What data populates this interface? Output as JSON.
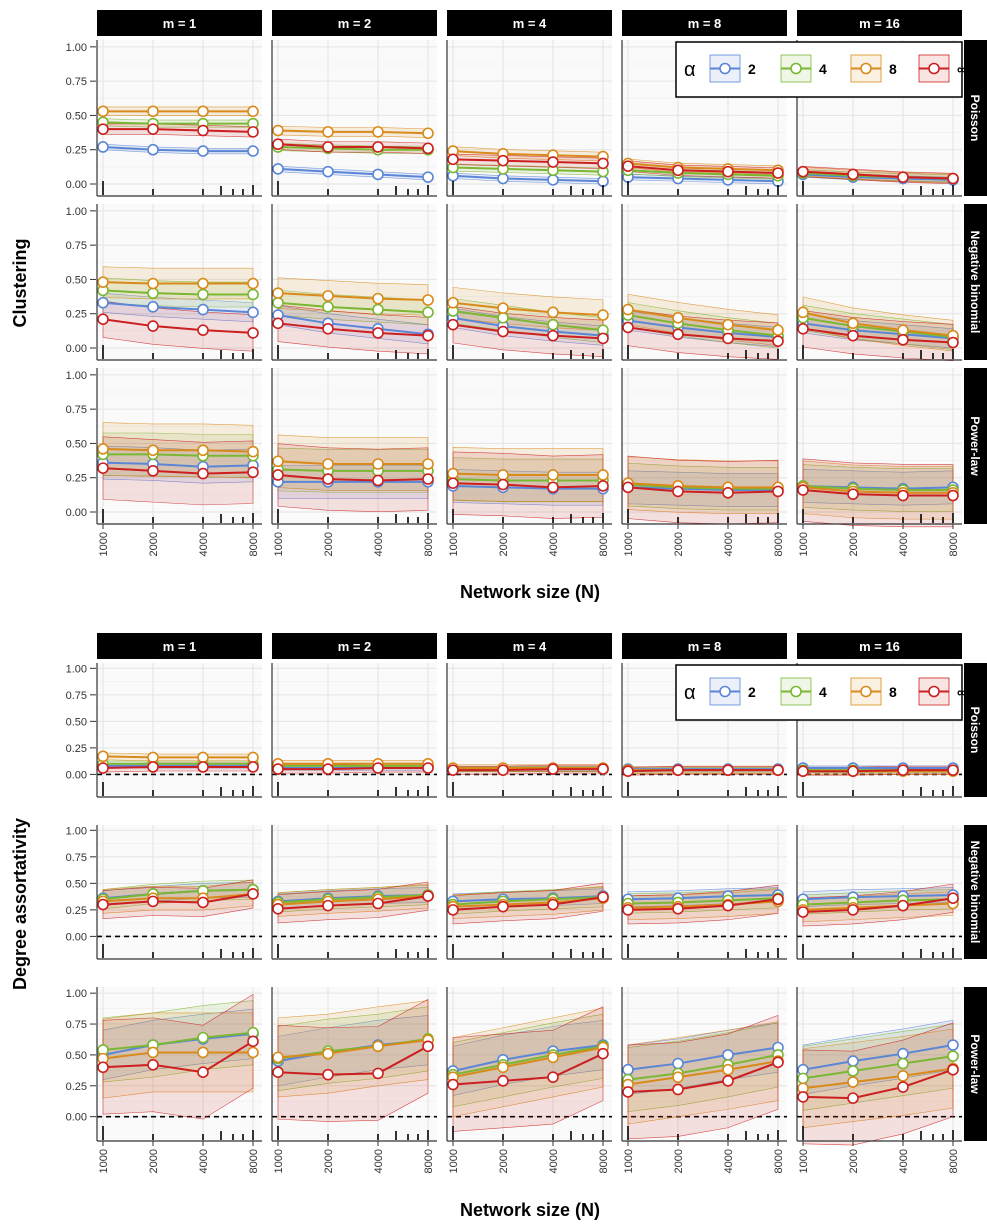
{
  "legend": {
    "symbol": "α",
    "labels": [
      "2",
      "4",
      "8",
      "∞"
    ]
  },
  "colors": {
    "2": "#5b86d6",
    "4": "#7ab733",
    "8": "#d88a1a",
    "inf": "#cc1f1f"
  },
  "chart_data": [
    {
      "type": "line",
      "ylabel": "Clustering",
      "xlabel": "Network size (N)",
      "x": [
        1000,
        2000,
        4000,
        8000
      ],
      "x_tick_labels": [
        "1000",
        "2000",
        "4000",
        "8000"
      ],
      "y_tick_labels": [
        "0.00",
        "0.25",
        "0.50",
        "0.75",
        "1.00"
      ],
      "ylim": [
        0,
        1.05
      ],
      "col_facets": [
        "m = 1",
        "m = 2",
        "m = 4",
        "m = 8",
        "m = 16"
      ],
      "row_facets": [
        "Poisson",
        "Negative binomial",
        "Power-law"
      ],
      "reference_line": null,
      "panels": [
        [
          {
            "s2": [
              0.27,
              0.25,
              0.24,
              0.24
            ],
            "s4": [
              0.45,
              0.44,
              0.44,
              0.44
            ],
            "s8": [
              0.53,
              0.53,
              0.53,
              0.53
            ],
            "sinf": [
              0.4,
              0.4,
              0.39,
              0.38
            ]
          },
          {
            "s2": [
              0.11,
              0.09,
              0.07,
              0.05
            ],
            "s4": [
              0.27,
              0.26,
              0.25,
              0.25
            ],
            "s8": [
              0.39,
              0.38,
              0.38,
              0.37
            ],
            "sinf": [
              0.29,
              0.27,
              0.27,
              0.26
            ]
          },
          {
            "s2": [
              0.06,
              0.04,
              0.03,
              0.02
            ],
            "s4": [
              0.12,
              0.11,
              0.1,
              0.09
            ],
            "s8": [
              0.24,
              0.22,
              0.21,
              0.2
            ],
            "sinf": [
              0.18,
              0.17,
              0.16,
              0.15
            ]
          },
          {
            "s2": [
              0.05,
              0.04,
              0.03,
              0.02
            ],
            "s4": [
              0.1,
              0.08,
              0.07,
              0.06
            ],
            "s8": [
              0.15,
              0.12,
              0.11,
              0.1
            ],
            "sinf": [
              0.13,
              0.1,
              0.09,
              0.08
            ]
          },
          {
            "s2": [
              0.07,
              0.05,
              0.04,
              0.03
            ],
            "s4": [
              0.08,
              0.06,
              0.05,
              0.04
            ],
            "s8": [
              0.09,
              0.07,
              0.05,
              0.04
            ],
            "sinf": [
              0.09,
              0.07,
              0.05,
              0.04
            ]
          }
        ],
        [
          {
            "s2": [
              0.33,
              0.3,
              0.28,
              0.26
            ],
            "s4": [
              0.42,
              0.4,
              0.39,
              0.39
            ],
            "s8": [
              0.48,
              0.47,
              0.47,
              0.47
            ],
            "sinf": [
              0.21,
              0.16,
              0.13,
              0.11
            ]
          },
          {
            "s2": [
              0.24,
              0.18,
              0.14,
              0.1
            ],
            "s4": [
              0.33,
              0.3,
              0.28,
              0.26
            ],
            "s8": [
              0.4,
              0.38,
              0.36,
              0.35
            ],
            "sinf": [
              0.18,
              0.14,
              0.11,
              0.09
            ]
          },
          {
            "s2": [
              0.22,
              0.16,
              0.12,
              0.09
            ],
            "s4": [
              0.27,
              0.22,
              0.17,
              0.13
            ],
            "s8": [
              0.33,
              0.29,
              0.26,
              0.24
            ],
            "sinf": [
              0.17,
              0.12,
              0.09,
              0.07
            ]
          },
          {
            "s2": [
              0.2,
              0.15,
              0.11,
              0.08
            ],
            "s4": [
              0.24,
              0.18,
              0.13,
              0.09
            ],
            "s8": [
              0.28,
              0.22,
              0.17,
              0.13
            ],
            "sinf": [
              0.15,
              0.1,
              0.07,
              0.05
            ]
          },
          {
            "s2": [
              0.18,
              0.13,
              0.1,
              0.07
            ],
            "s4": [
              0.22,
              0.16,
              0.12,
              0.08
            ],
            "s8": [
              0.26,
              0.18,
              0.13,
              0.09
            ],
            "sinf": [
              0.14,
              0.09,
              0.06,
              0.04
            ]
          }
        ],
        [
          {
            "s2": [
              0.36,
              0.35,
              0.33,
              0.34
            ],
            "s4": [
              0.42,
              0.42,
              0.41,
              0.41
            ],
            "s8": [
              0.46,
              0.45,
              0.45,
              0.44
            ],
            "sinf": [
              0.32,
              0.3,
              0.28,
              0.29
            ]
          },
          {
            "s2": [
              0.22,
              0.22,
              0.22,
              0.22
            ],
            "s4": [
              0.31,
              0.3,
              0.3,
              0.3
            ],
            "s8": [
              0.37,
              0.35,
              0.35,
              0.35
            ],
            "sinf": [
              0.27,
              0.24,
              0.23,
              0.24
            ]
          },
          {
            "s2": [
              0.19,
              0.18,
              0.17,
              0.17
            ],
            "s4": [
              0.24,
              0.23,
              0.23,
              0.23
            ],
            "s8": [
              0.28,
              0.27,
              0.27,
              0.27
            ],
            "sinf": [
              0.21,
              0.2,
              0.18,
              0.19
            ]
          },
          {
            "s2": [
              0.18,
              0.17,
              0.16,
              0.16
            ],
            "s4": [
              0.2,
              0.18,
              0.17,
              0.17
            ],
            "s8": [
              0.21,
              0.19,
              0.18,
              0.18
            ],
            "sinf": [
              0.18,
              0.15,
              0.14,
              0.15
            ]
          },
          {
            "s2": [
              0.19,
              0.18,
              0.17,
              0.18
            ],
            "s4": [
              0.19,
              0.17,
              0.16,
              0.16
            ],
            "s8": [
              0.18,
              0.15,
              0.14,
              0.14
            ],
            "sinf": [
              0.16,
              0.13,
              0.12,
              0.12
            ]
          }
        ]
      ]
    },
    {
      "type": "line",
      "ylabel": "Degree assortativity",
      "xlabel": "Network size (N)",
      "x": [
        1000,
        2000,
        4000,
        8000
      ],
      "x_tick_labels": [
        "1000",
        "2000",
        "4000",
        "8000"
      ],
      "y_tick_labels": [
        "0.00",
        "0.25",
        "0.50",
        "0.75",
        "1.00"
      ],
      "ylim": [
        -0.1,
        1.05
      ],
      "col_facets": [
        "m = 1",
        "m = 2",
        "m = 4",
        "m = 8",
        "m = 16"
      ],
      "row_facets": [
        "Poisson",
        "Negative binomial",
        "Power-law"
      ],
      "reference_line": 0,
      "panels": [
        [
          {
            "s2": [
              0.08,
              0.08,
              0.08,
              0.08
            ],
            "s4": [
              0.1,
              0.1,
              0.1,
              0.1
            ],
            "s8": [
              0.17,
              0.16,
              0.16,
              0.16
            ],
            "sinf": [
              0.06,
              0.07,
              0.07,
              0.07
            ]
          },
          {
            "s2": [
              0.06,
              0.06,
              0.06,
              0.06
            ],
            "s4": [
              0.08,
              0.08,
              0.08,
              0.08
            ],
            "s8": [
              0.1,
              0.1,
              0.1,
              0.1
            ],
            "sinf": [
              0.05,
              0.05,
              0.06,
              0.06
            ]
          },
          {
            "s2": [
              0.05,
              0.05,
              0.05,
              0.05
            ],
            "s4": [
              0.05,
              0.05,
              0.05,
              0.05
            ],
            "s8": [
              0.06,
              0.06,
              0.06,
              0.06
            ],
            "sinf": [
              0.04,
              0.04,
              0.05,
              0.05
            ]
          },
          {
            "s2": [
              0.05,
              0.05,
              0.05,
              0.05
            ],
            "s4": [
              0.04,
              0.04,
              0.04,
              0.04
            ],
            "s8": [
              0.04,
              0.04,
              0.04,
              0.04
            ],
            "sinf": [
              0.03,
              0.04,
              0.04,
              0.04
            ]
          },
          {
            "s2": [
              0.06,
              0.06,
              0.06,
              0.06
            ],
            "s4": [
              0.04,
              0.04,
              0.04,
              0.04
            ],
            "s8": [
              0.03,
              0.03,
              0.03,
              0.03
            ],
            "sinf": [
              0.03,
              0.03,
              0.04,
              0.04
            ]
          }
        ],
        [
          {
            "s2": [
              0.36,
              0.4,
              0.43,
              0.44
            ],
            "s4": [
              0.35,
              0.4,
              0.43,
              0.44
            ],
            "s8": [
              0.33,
              0.36,
              0.36,
              0.4
            ],
            "sinf": [
              0.3,
              0.33,
              0.32,
              0.4
            ]
          },
          {
            "s2": [
              0.33,
              0.36,
              0.38,
              0.39
            ],
            "s4": [
              0.32,
              0.35,
              0.37,
              0.39
            ],
            "s8": [
              0.3,
              0.33,
              0.35,
              0.38
            ],
            "sinf": [
              0.26,
              0.29,
              0.31,
              0.38
            ]
          },
          {
            "s2": [
              0.33,
              0.35,
              0.36,
              0.38
            ],
            "s4": [
              0.3,
              0.33,
              0.35,
              0.37
            ],
            "s8": [
              0.28,
              0.3,
              0.32,
              0.36
            ],
            "sinf": [
              0.25,
              0.28,
              0.3,
              0.37
            ]
          },
          {
            "s2": [
              0.35,
              0.36,
              0.38,
              0.39
            ],
            "s4": [
              0.31,
              0.32,
              0.34,
              0.36
            ],
            "s8": [
              0.27,
              0.28,
              0.3,
              0.33
            ],
            "sinf": [
              0.25,
              0.26,
              0.29,
              0.35
            ]
          },
          {
            "s2": [
              0.35,
              0.37,
              0.38,
              0.39
            ],
            "s4": [
              0.3,
              0.32,
              0.34,
              0.35
            ],
            "s8": [
              0.25,
              0.27,
              0.29,
              0.31
            ],
            "sinf": [
              0.23,
              0.25,
              0.29,
              0.36
            ]
          }
        ],
        [
          {
            "s2": [
              0.5,
              0.58,
              0.63,
              0.67
            ],
            "s4": [
              0.54,
              0.58,
              0.64,
              0.68
            ],
            "s8": [
              0.47,
              0.52,
              0.52,
              0.52
            ],
            "sinf": [
              0.4,
              0.42,
              0.36,
              0.61
            ]
          },
          {
            "s2": [
              0.45,
              0.52,
              0.58,
              0.62
            ],
            "s4": [
              0.47,
              0.53,
              0.57,
              0.63
            ],
            "s8": [
              0.48,
              0.51,
              0.57,
              0.62
            ],
            "sinf": [
              0.36,
              0.34,
              0.35,
              0.57
            ]
          },
          {
            "s2": [
              0.37,
              0.46,
              0.53,
              0.58
            ],
            "s4": [
              0.34,
              0.42,
              0.5,
              0.57
            ],
            "s8": [
              0.32,
              0.4,
              0.48,
              0.56
            ],
            "sinf": [
              0.26,
              0.29,
              0.32,
              0.51
            ]
          },
          {
            "s2": [
              0.38,
              0.43,
              0.5,
              0.56
            ],
            "s4": [
              0.3,
              0.35,
              0.42,
              0.5
            ],
            "s8": [
              0.26,
              0.32,
              0.38,
              0.45
            ],
            "sinf": [
              0.2,
              0.22,
              0.29,
              0.44
            ]
          },
          {
            "s2": [
              0.38,
              0.45,
              0.51,
              0.58
            ],
            "s4": [
              0.31,
              0.37,
              0.43,
              0.49
            ],
            "s8": [
              0.23,
              0.28,
              0.33,
              0.39
            ],
            "sinf": [
              0.16,
              0.15,
              0.24,
              0.38
            ]
          }
        ]
      ]
    }
  ]
}
